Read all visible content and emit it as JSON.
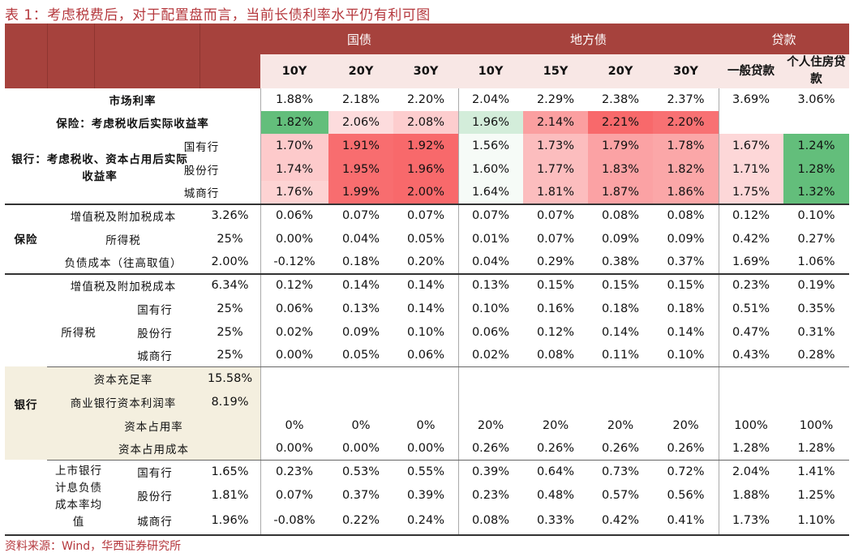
{
  "title": "表 1：考虑税费后，对于配置盘而言，当前长债利率水平仍有利可图",
  "source": "资料来源：Wind，华西证券研究所",
  "colors": {
    "header": "#a6423d",
    "subheader": "#f8e7e5",
    "band": "#f4efdf",
    "green_strong": "#63be7b",
    "red_strong": "#f8696b"
  },
  "groups": {
    "govt": "国债",
    "local": "地方债",
    "loan": "贷款"
  },
  "cols": [
    "10Y",
    "20Y",
    "30Y",
    "10Y",
    "15Y",
    "20Y",
    "30Y",
    "一般贷款",
    "个人住房贷款"
  ],
  "market": {
    "label": "市场利率",
    "values": [
      "1.88%",
      "2.18%",
      "2.20%",
      "2.04%",
      "2.29%",
      "2.38%",
      "2.37%",
      "3.69%",
      "3.06%"
    ]
  },
  "ins_yield": {
    "label": "保险：考虑税收后实际收益率",
    "values": [
      "1.82%",
      "2.06%",
      "2.08%",
      "1.96%",
      "2.14%",
      "2.21%",
      "2.20%"
    ]
  },
  "bank_yield": {
    "label": "银行：考虑税收、资本占用后实际收益率",
    "rows": [
      {
        "name": "国有行",
        "values": [
          "1.70%",
          "1.91%",
          "1.92%",
          "1.56%",
          "1.73%",
          "1.79%",
          "1.78%",
          "1.67%",
          "1.24%"
        ]
      },
      {
        "name": "股份行",
        "values": [
          "1.74%",
          "1.95%",
          "1.96%",
          "1.60%",
          "1.77%",
          "1.83%",
          "1.82%",
          "1.71%",
          "1.28%"
        ]
      },
      {
        "name": "城商行",
        "values": [
          "1.76%",
          "1.99%",
          "2.00%",
          "1.64%",
          "1.81%",
          "1.87%",
          "1.86%",
          "1.75%",
          "1.32%"
        ]
      }
    ]
  },
  "insurance": {
    "label": "保险",
    "vat": {
      "label": "增值税及附加税成本",
      "rate": "3.26%",
      "values": [
        "0.06%",
        "0.07%",
        "0.07%",
        "0.07%",
        "0.07%",
        "0.08%",
        "0.08%",
        "0.12%",
        "0.10%"
      ]
    },
    "income": {
      "label": "所得税",
      "rate": "25%",
      "values": [
        "0.00%",
        "0.04%",
        "0.05%",
        "0.01%",
        "0.07%",
        "0.09%",
        "0.09%",
        "0.42%",
        "0.27%"
      ]
    },
    "debt": {
      "label": "负债成本（往高取值）",
      "rate": "2.00%",
      "values": [
        "-0.12%",
        "0.18%",
        "0.20%",
        "0.04%",
        "0.29%",
        "0.38%",
        "0.37%",
        "1.69%",
        "1.06%"
      ]
    }
  },
  "bank": {
    "label": "银行",
    "vat": {
      "label": "增值税及附加税成本",
      "rate": "6.34%",
      "values": [
        "0.12%",
        "0.14%",
        "0.14%",
        "0.13%",
        "0.15%",
        "0.15%",
        "0.15%",
        "0.23%",
        "0.19%"
      ]
    },
    "income_label": "所得税",
    "income": [
      {
        "name": "国有行",
        "rate": "25%",
        "values": [
          "0.06%",
          "0.13%",
          "0.14%",
          "0.10%",
          "0.16%",
          "0.18%",
          "0.18%",
          "0.51%",
          "0.35%"
        ]
      },
      {
        "name": "股份行",
        "rate": "25%",
        "values": [
          "0.02%",
          "0.09%",
          "0.10%",
          "0.06%",
          "0.12%",
          "0.14%",
          "0.14%",
          "0.47%",
          "0.31%"
        ]
      },
      {
        "name": "城商行",
        "rate": "25%",
        "values": [
          "0.00%",
          "0.05%",
          "0.06%",
          "0.02%",
          "0.08%",
          "0.11%",
          "0.10%",
          "0.43%",
          "0.28%"
        ]
      }
    ],
    "car": {
      "label": "资本充足率",
      "rate": "15.58%"
    },
    "profit": {
      "label": "商业银行资本利润率",
      "rate": "8.19%"
    },
    "capital_use": {
      "label": "资本占用率",
      "values": [
        "0%",
        "0%",
        "0%",
        "20%",
        "20%",
        "20%",
        "20%",
        "100%",
        "100%"
      ]
    },
    "capital_cost": {
      "label": "资本占用成本",
      "values": [
        "0.00%",
        "0.00%",
        "0.00%",
        "0.26%",
        "0.26%",
        "0.26%",
        "0.26%",
        "1.28%",
        "1.28%"
      ]
    },
    "funding_label": "上市银行计息负债成本率均值",
    "funding": [
      {
        "name": "国有行",
        "rate": "1.65%",
        "values": [
          "0.23%",
          "0.53%",
          "0.55%",
          "0.39%",
          "0.64%",
          "0.73%",
          "0.72%",
          "2.04%",
          "1.41%"
        ]
      },
      {
        "name": "股份行",
        "rate": "1.81%",
        "values": [
          "0.07%",
          "0.37%",
          "0.39%",
          "0.23%",
          "0.48%",
          "0.57%",
          "0.56%",
          "1.88%",
          "1.25%"
        ]
      },
      {
        "name": "城商行",
        "rate": "1.96%",
        "values": [
          "-0.08%",
          "0.22%",
          "0.24%",
          "0.08%",
          "0.33%",
          "0.42%",
          "0.41%",
          "1.73%",
          "1.10%"
        ]
      }
    ]
  }
}
